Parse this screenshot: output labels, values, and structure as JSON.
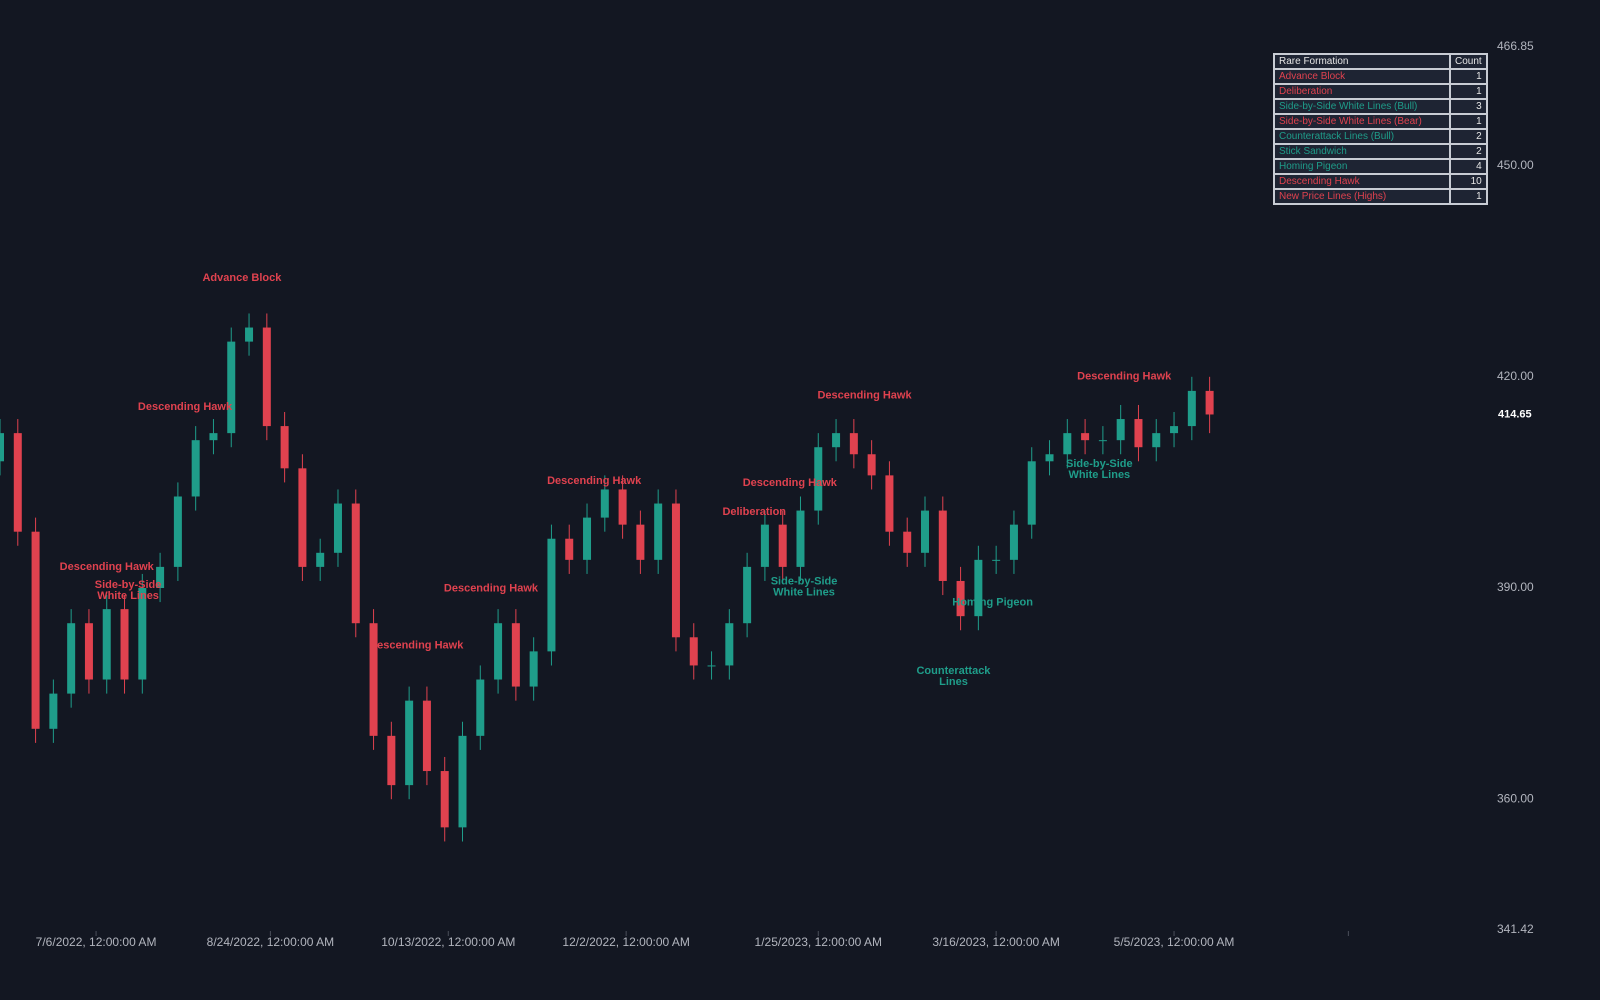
{
  "chart_data": {
    "type": "candlestick",
    "up_color": "#1f9d8a",
    "down_color": "#e0424f",
    "x": [
      "2022-06-09",
      "2022-06-14",
      "2022-06-19",
      "2022-06-24",
      "2022-06-29",
      "2022-07-04",
      "2022-07-09",
      "2022-07-14",
      "2022-07-19",
      "2022-07-24",
      "2022-07-29",
      "2022-08-03",
      "2022-08-08",
      "2022-08-13",
      "2022-08-18",
      "2022-08-23",
      "2022-08-28",
      "2022-09-02",
      "2022-09-07",
      "2022-09-12",
      "2022-09-17",
      "2022-09-22",
      "2022-09-27",
      "2022-10-02",
      "2022-10-07",
      "2022-10-12",
      "2022-10-17",
      "2022-10-22",
      "2022-10-27",
      "2022-11-01",
      "2022-11-06",
      "2022-11-11",
      "2022-11-16",
      "2022-11-21",
      "2022-11-26",
      "2022-12-01",
      "2022-12-06",
      "2022-12-11",
      "2022-12-16",
      "2022-12-21",
      "2022-12-26",
      "2022-12-31",
      "2023-01-05",
      "2023-01-10",
      "2023-01-15",
      "2023-01-20",
      "2023-01-25",
      "2023-01-30",
      "2023-02-04",
      "2023-02-09",
      "2023-02-14",
      "2023-02-19",
      "2023-02-24",
      "2023-03-01",
      "2023-03-06",
      "2023-03-11",
      "2023-03-16",
      "2023-03-21",
      "2023-03-26",
      "2023-03-31",
      "2023-04-05",
      "2023-04-10",
      "2023-04-15",
      "2023-04-20",
      "2023-04-25",
      "2023-04-30",
      "2023-05-05",
      "2023-05-10",
      "2023-05-15"
    ],
    "open": [
      408,
      412,
      398,
      370,
      375,
      385,
      377,
      387,
      377,
      390,
      393,
      403,
      411,
      412,
      425,
      427,
      413,
      407,
      393,
      395,
      402,
      385,
      369,
      362,
      374,
      364,
      356,
      369,
      377,
      385,
      376,
      381,
      397,
      394,
      400,
      404,
      399,
      394,
      402,
      383,
      379,
      379,
      385,
      393,
      399,
      393,
      401,
      410,
      412,
      409,
      406,
      398,
      395,
      401,
      391,
      386,
      394,
      394,
      399,
      408,
      409,
      412,
      411,
      411,
      414,
      410,
      412,
      413,
      418
    ],
    "high": [
      414,
      414,
      400,
      377,
      387,
      387,
      389,
      389,
      392,
      395,
      405,
      413,
      414,
      427,
      429,
      429,
      415,
      409,
      397,
      404,
      404,
      387,
      371,
      376,
      376,
      366,
      371,
      379,
      387,
      387,
      383,
      399,
      399,
      402,
      406,
      406,
      401,
      404,
      404,
      385,
      381,
      387,
      395,
      401,
      401,
      403,
      412,
      414,
      414,
      411,
      408,
      400,
      403,
      403,
      393,
      396,
      396,
      401,
      410,
      411,
      414,
      414,
      413,
      416,
      416,
      414,
      415,
      420,
      420
    ],
    "low": [
      406,
      396,
      368,
      368,
      373,
      375,
      375,
      375,
      375,
      388,
      391,
      401,
      409,
      410,
      423,
      411,
      405,
      391,
      391,
      393,
      383,
      367,
      360,
      360,
      362,
      354,
      354,
      367,
      375,
      374,
      374,
      379,
      392,
      392,
      398,
      397,
      392,
      392,
      381,
      377,
      377,
      377,
      383,
      391,
      391,
      391,
      399,
      408,
      407,
      404,
      396,
      393,
      393,
      389,
      384,
      384,
      392,
      392,
      397,
      406,
      407,
      409,
      409,
      409,
      408,
      408,
      410,
      411,
      412
    ],
    "close": [
      412,
      398,
      370,
      375,
      385,
      377,
      387,
      377,
      390,
      393,
      403,
      411,
      412,
      425,
      427,
      413,
      407,
      393,
      395,
      402,
      385,
      369,
      362,
      374,
      364,
      356,
      369,
      377,
      385,
      376,
      381,
      397,
      394,
      400,
      404,
      399,
      394,
      402,
      383,
      379,
      379,
      385,
      393,
      399,
      393,
      401,
      410,
      412,
      409,
      406,
      398,
      395,
      401,
      391,
      386,
      394,
      394,
      399,
      408,
      409,
      412,
      411,
      411,
      414,
      410,
      412,
      413,
      418,
      414.65
    ],
    "xlim": [
      "2022-06-09",
      "2023-07-30"
    ],
    "xticks": [
      {
        "value": "2022-07-06",
        "label": "7/6/2022, 12:00:00 AM"
      },
      {
        "value": "2022-08-24",
        "label": "8/24/2022, 12:00:00 AM"
      },
      {
        "value": "2022-10-13",
        "label": "10/13/2022, 12:00:00 AM"
      },
      {
        "value": "2022-12-02",
        "label": "12/2/2022, 12:00:00 AM"
      },
      {
        "value": "2023-01-25",
        "label": "1/25/2023, 12:00:00 AM"
      },
      {
        "value": "2023-03-16",
        "label": "3/16/2023, 12:00:00 AM"
      },
      {
        "value": "2023-05-05",
        "label": "5/5/2023, 12:00:00 AM"
      },
      {
        "value": "2023-06-23",
        "label": null
      }
    ],
    "ylim": [
      341.42,
      466.85
    ],
    "yticks": [
      341.42,
      {
        "value": 360,
        "label": "360.00"
      },
      {
        "value": 390,
        "label": "390.00"
      },
      {
        "value": 420,
        "label": "420.00"
      },
      {
        "value": 450,
        "label": "450.00"
      },
      466.85
    ],
    "last_price": 414.65,
    "annotations": [
      {
        "lines": [
          "Advance Block"
        ],
        "x": "2022-08-16",
        "y": 434.0,
        "color": "#e0424f"
      },
      {
        "lines": [
          "Descending Hawk"
        ],
        "x": "2022-07-31",
        "y": 415.7,
        "color": "#e0424f"
      },
      {
        "lines": [
          "Descending Hawk"
        ],
        "x": "2022-07-09",
        "y": 393.0,
        "color": "#e0424f"
      },
      {
        "lines": [
          "Side-by-Side",
          "White Lines"
        ],
        "x": "2022-07-15",
        "y": 389.6,
        "color": "#e0424f"
      },
      {
        "lines": [
          "Descending Hawk"
        ],
        "x": "2022-10-04",
        "y": 381.8,
        "color": "#e0424f"
      },
      {
        "lines": [
          "Descending Hawk"
        ],
        "x": "2022-10-25",
        "y": 389.9,
        "color": "#e0424f"
      },
      {
        "lines": [
          "Descending Hawk"
        ],
        "x": "2022-11-23",
        "y": 405.2,
        "color": "#e0424f"
      },
      {
        "lines": [
          "Deliberation"
        ],
        "x": "2023-01-07",
        "y": 400.8,
        "color": "#e0424f"
      },
      {
        "lines": [
          "Descending Hawk"
        ],
        "x": "2023-01-17",
        "y": 404.9,
        "color": "#e0424f"
      },
      {
        "lines": [
          "Side-by-Side",
          "White Lines"
        ],
        "x": "2023-01-21",
        "y": 390.1,
        "color": "#1f9d8a"
      },
      {
        "lines": [
          "Descending Hawk"
        ],
        "x": "2023-02-07",
        "y": 417.3,
        "color": "#e0424f"
      },
      {
        "lines": [
          "Counterattack",
          "Lines"
        ],
        "x": "2023-03-04",
        "y": 377.4,
        "color": "#1f9d8a"
      },
      {
        "lines": [
          "Homing Pigeon"
        ],
        "x": "2023-03-15",
        "y": 387.9,
        "color": "#1f9d8a"
      },
      {
        "lines": [
          "Side-by-Side",
          "White Lines"
        ],
        "x": "2023-04-14",
        "y": 406.8,
        "color": "#1f9d8a"
      },
      {
        "lines": [
          "Descending Hawk"
        ],
        "x": "2023-04-21",
        "y": 420.0,
        "color": "#e0424f"
      }
    ]
  },
  "table": {
    "header": [
      "Rare Formation",
      "Count"
    ],
    "rows": [
      {
        "name": "Advance Block",
        "count": 1,
        "color": "#e0424f"
      },
      {
        "name": "Deliberation",
        "count": 1,
        "color": "#e0424f"
      },
      {
        "name": "Side-by-Side White Lines (Bull)",
        "count": 3,
        "color": "#1f9d8a"
      },
      {
        "name": "Side-by-Side White Lines (Bear)",
        "count": 1,
        "color": "#e0424f"
      },
      {
        "name": "Counterattack Lines (Bull)",
        "count": 2,
        "color": "#1f9d8a"
      },
      {
        "name": "Stick Sandwich",
        "count": 2,
        "color": "#1f9d8a"
      },
      {
        "name": "Homing Pigeon",
        "count": 4,
        "color": "#1f9d8a"
      },
      {
        "name": "Descending Hawk",
        "count": 10,
        "color": "#e0424f"
      },
      {
        "name": "New Price Lines (Highs)",
        "count": 1,
        "color": "#e0424f"
      }
    ]
  }
}
